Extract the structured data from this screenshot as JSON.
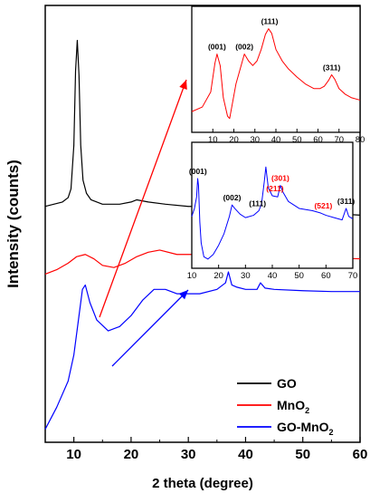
{
  "chart_data": [
    {
      "id": "main",
      "type": "line",
      "xlabel": "2 theta (degree)",
      "ylabel": "Intensity (counts)",
      "xlim": [
        5,
        60
      ],
      "ylim": [
        0,
        100
      ],
      "xticks": [
        10,
        20,
        30,
        40,
        50,
        60
      ],
      "yticks_shown": false,
      "legend": {
        "placement": "bottom-right"
      },
      "series": [
        {
          "name": "GO",
          "color": "#000000",
          "x": [
            5,
            8,
            9,
            9.5,
            10,
            10.3,
            10.6,
            10.9,
            11.2,
            11.6,
            12.2,
            13,
            15,
            18,
            20,
            21,
            23,
            26,
            30,
            33,
            36,
            40,
            41.5,
            42.5,
            43.3,
            44.5,
            47,
            52,
            56,
            60
          ],
          "y": [
            54,
            55,
            56,
            58,
            68,
            85,
            92,
            84,
            68,
            60,
            57,
            55.5,
            54.5,
            54.5,
            55,
            55.5,
            55,
            54.5,
            54,
            54,
            53.5,
            53,
            53.5,
            55.5,
            53.5,
            53,
            52.8,
            52.5,
            52.3,
            52
          ]
        },
        {
          "name": "MnO2",
          "color": "#ff0000",
          "x": [
            5,
            7,
            9,
            10.5,
            12,
            13.5,
            15,
            17,
            19,
            21,
            23,
            25,
            28,
            32,
            35,
            37,
            38.5,
            40,
            42,
            45,
            50,
            55,
            60
          ],
          "y": [
            38.5,
            39.5,
            41,
            42.5,
            43,
            42,
            40.5,
            40,
            41,
            42.5,
            43.5,
            44,
            43,
            43,
            44,
            45,
            44.5,
            43.5,
            43,
            42.5,
            42.3,
            42.2,
            42
          ]
        },
        {
          "name": "GO-MnO2",
          "color": "#0000ff",
          "x": [
            5,
            7,
            9,
            10,
            10.7,
            11.5,
            12,
            12.8,
            14,
            16,
            18,
            20,
            22,
            24,
            26,
            28,
            32,
            35,
            36.5,
            37,
            37.6,
            38.5,
            40,
            42,
            42.6,
            43.4,
            45,
            50,
            55,
            60
          ],
          "y": [
            3,
            8,
            14,
            20,
            27,
            35,
            36,
            32,
            28,
            25.5,
            26.5,
            29,
            32.5,
            35,
            35,
            34,
            34,
            35,
            36.5,
            39,
            36,
            35.5,
            35,
            35,
            36.5,
            35.3,
            35,
            34.7,
            34.5,
            34.5
          ]
        }
      ],
      "legend_labels": [
        {
          "text": "GO",
          "color": "#000000"
        },
        {
          "text": "MnO",
          "sub": "2",
          "color": "#ff0000"
        },
        {
          "text": "GO-MnO",
          "sub": "2",
          "color": "#0000ff"
        }
      ]
    },
    {
      "id": "inset-top",
      "type": "line",
      "xlim": [
        0,
        80
      ],
      "xticks": [
        10,
        20,
        30,
        40,
        50,
        60,
        70,
        80
      ],
      "series": [
        {
          "color": "#ff0000",
          "x": [
            0,
            5,
            9,
            11,
            12,
            13.5,
            15,
            17,
            18,
            19,
            21,
            23,
            25,
            27,
            29,
            31,
            33,
            35,
            36.5,
            38,
            40,
            43,
            46,
            50,
            54,
            58,
            61,
            63,
            65,
            66.5,
            68,
            70,
            73,
            76,
            80
          ],
          "y": [
            18,
            22,
            35,
            60,
            68,
            58,
            30,
            14,
            12,
            22,
            42,
            55,
            68,
            62,
            58,
            62,
            72,
            85,
            90,
            86,
            72,
            62,
            55,
            48,
            42,
            38,
            38,
            40,
            45,
            50,
            46,
            38,
            33,
            30,
            28
          ]
        }
      ],
      "peaks": [
        {
          "label": "(001)",
          "x": 12,
          "color": "#000000"
        },
        {
          "label": "(002)",
          "x": 25,
          "color": "#000000"
        },
        {
          "label": "(111)",
          "x": 37,
          "color": "#000000"
        },
        {
          "label": "(311)",
          "x": 66.5,
          "color": "#000000"
        }
      ]
    },
    {
      "id": "inset-bottom",
      "type": "line",
      "xlim": [
        10,
        70
      ],
      "xticks": [
        10,
        20,
        30,
        40,
        50,
        60,
        70
      ],
      "series": [
        {
          "color": "#0000ff",
          "x": [
            10,
            11,
            11.8,
            12.2,
            12.5,
            13,
            13.5,
            14.5,
            16,
            18,
            20,
            22,
            24,
            25,
            26,
            28,
            30,
            33,
            35,
            36,
            37,
            37.6,
            38.5,
            40,
            42,
            43,
            44,
            46,
            50,
            55,
            58,
            60,
            63,
            66,
            67.5,
            68.5,
            70
          ],
          "y": [
            45,
            52,
            62,
            78,
            72,
            40,
            22,
            10,
            8,
            12,
            20,
            30,
            45,
            55,
            52,
            47,
            44,
            46,
            50,
            56,
            75,
            88,
            70,
            63,
            62,
            72,
            66,
            58,
            52,
            50,
            48,
            46,
            44,
            42,
            52,
            45,
            43
          ]
        }
      ],
      "peaks": [
        {
          "label": "(001)",
          "x": 12.3,
          "color": "#000000"
        },
        {
          "label": "(002)",
          "x": 25,
          "color": "#000000"
        },
        {
          "label": "(111)",
          "x": 34.5,
          "color": "#000000"
        },
        {
          "label": "(211)",
          "x": 41,
          "color": "#ff0000"
        },
        {
          "label": "(301)",
          "x": 43,
          "color": "#ff0000"
        },
        {
          "label": "(521)",
          "x": 59,
          "color": "#ff0000"
        },
        {
          "label": "(311)",
          "x": 67.5,
          "color": "#000000"
        }
      ]
    }
  ]
}
